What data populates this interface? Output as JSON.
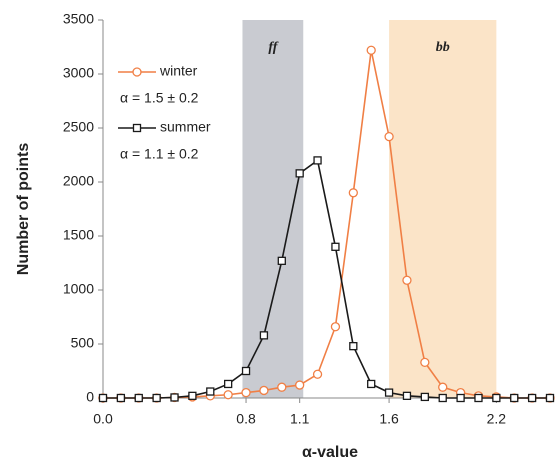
{
  "chart_data": {
    "type": "line",
    "xlabel": "α-value",
    "ylabel": "Number of points",
    "x": [
      0,
      0.1,
      0.2,
      0.3,
      0.4,
      0.5,
      0.6,
      0.7,
      0.8,
      0.9,
      1.0,
      1.1,
      1.2,
      1.3,
      1.4,
      1.5,
      1.6,
      1.7,
      1.8,
      1.9,
      2.0,
      2.1,
      2.2,
      2.3,
      2.4,
      2.5
    ],
    "series": [
      {
        "name": "winter",
        "note": "α = 1.5 ± 0.2",
        "color": "#f07f45",
        "marker": "circle",
        "values": [
          0,
          0,
          0,
          0,
          5,
          10,
          20,
          30,
          50,
          70,
          100,
          120,
          220,
          660,
          1900,
          3220,
          2420,
          1090,
          330,
          100,
          50,
          20,
          10,
          0,
          0,
          0
        ]
      },
      {
        "name": "summer",
        "note": "α = 1.1 ± 0.2",
        "color": "#1a1a1a",
        "marker": "square",
        "values": [
          0,
          0,
          0,
          0,
          5,
          20,
          60,
          130,
          250,
          580,
          1270,
          2080,
          2200,
          1400,
          480,
          130,
          50,
          20,
          10,
          0,
          0,
          0,
          0,
          0,
          0,
          0
        ]
      }
    ],
    "bands": [
      {
        "label": "ff",
        "range": [
          0.78,
          1.12
        ],
        "color": "#c9cbd1"
      },
      {
        "label": "bb",
        "range": [
          1.6,
          2.2
        ],
        "color": "#fbe4c8"
      }
    ],
    "xlim": [
      0,
      2.5
    ],
    "xticks": [
      {
        "value": 0,
        "label": "0.0"
      },
      0.8,
      1.1,
      1.6,
      2.2
    ],
    "ylim": [
      0,
      3500
    ],
    "yticks": [
      0,
      500,
      1000,
      1500,
      2000,
      2500,
      3000,
      3500
    ]
  }
}
